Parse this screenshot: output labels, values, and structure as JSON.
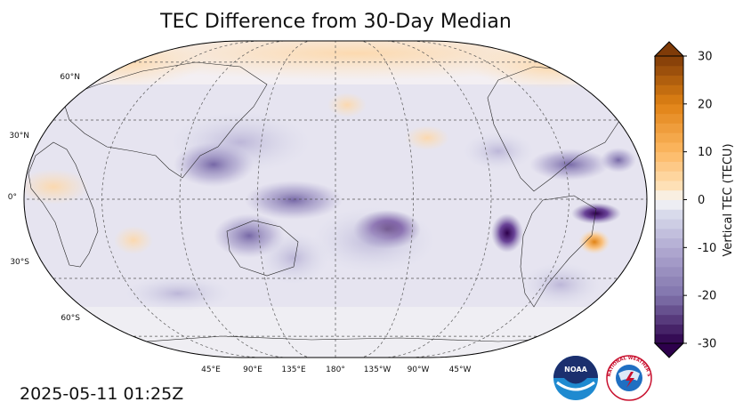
{
  "title": "TEC Difference from 30-Day Median",
  "timestamp": "2025-05-11 01:25Z",
  "map": {
    "projection": "Robinson",
    "central_longitude": "180",
    "latitude_labels": [
      "60°N",
      "30°N",
      "0°",
      "30°S",
      "60°S"
    ],
    "longitude_labels": [
      "45°E",
      "90°E",
      "135°E",
      "180°",
      "135°W",
      "90°W",
      "45°W"
    ],
    "gridlines": true
  },
  "colorbar": {
    "label": "Vertical TEC (TECU)",
    "ticks": [
      "30",
      "20",
      "10",
      "0",
      "-10",
      "-20",
      "-30"
    ],
    "range": [
      -30,
      30
    ],
    "extend": "both",
    "colors": {
      "max": "#7f3b08",
      "positive": "#e08214",
      "light_positive": "#fee0b6",
      "zero": "#f7f7f7",
      "light_negative": "#d8daeb",
      "negative": "#8073ac",
      "min": "#2d004b"
    }
  },
  "logos": {
    "left": {
      "name": "noaa-logo",
      "text": "NOAA"
    },
    "right": {
      "name": "nws-logo",
      "text": "NATIONAL WEATHER SERVICE"
    }
  }
}
